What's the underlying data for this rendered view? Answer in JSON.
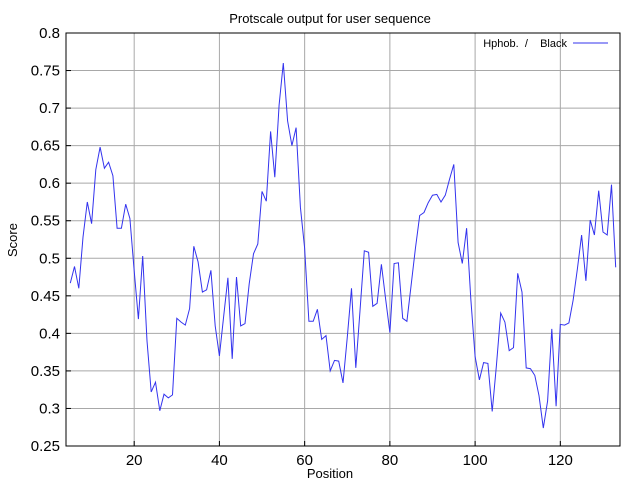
{
  "chart_data": {
    "type": "line",
    "title": "Protscale output for user sequence",
    "xlabel": "Position",
    "ylabel": "Score",
    "xlim": [
      4,
      134
    ],
    "ylim": [
      0.25,
      0.8
    ],
    "x_ticks": [
      20,
      40,
      60,
      80,
      100,
      120
    ],
    "y_ticks": [
      0.25,
      0.3,
      0.35,
      0.4,
      0.45,
      0.5,
      0.55,
      0.6,
      0.65,
      0.7,
      0.75,
      0.8
    ],
    "grid": true,
    "legend_position": "top-right",
    "legend_text": "Hphob.  /    Black",
    "series": [
      {
        "name": "Hphob. / Black",
        "color": "#3333ee",
        "x_start": 5,
        "values": [
          0.467,
          0.489,
          0.46,
          0.528,
          0.575,
          0.546,
          0.618,
          0.648,
          0.62,
          0.628,
          0.61,
          0.54,
          0.54,
          0.572,
          0.553,
          0.483,
          0.419,
          0.503,
          0.39,
          0.322,
          0.335,
          0.297,
          0.319,
          0.314,
          0.318,
          0.42,
          0.415,
          0.411,
          0.433,
          0.516,
          0.495,
          0.455,
          0.458,
          0.484,
          0.41,
          0.37,
          0.423,
          0.474,
          0.366,
          0.475,
          0.41,
          0.413,
          0.466,
          0.506,
          0.519,
          0.589,
          0.576,
          0.669,
          0.608,
          0.704,
          0.76,
          0.683,
          0.65,
          0.674,
          0.568,
          0.514,
          0.416,
          0.416,
          0.432,
          0.392,
          0.397,
          0.35,
          0.364,
          0.363,
          0.334,
          0.395,
          0.46,
          0.354,
          0.43,
          0.51,
          0.508,
          0.436,
          0.44,
          0.492,
          0.446,
          0.401,
          0.493,
          0.494,
          0.42,
          0.416,
          0.465,
          0.513,
          0.557,
          0.561,
          0.574,
          0.584,
          0.585,
          0.575,
          0.584,
          0.605,
          0.625,
          0.521,
          0.493,
          0.54,
          0.446,
          0.369,
          0.338,
          0.361,
          0.36,
          0.296,
          0.357,
          0.427,
          0.415,
          0.377,
          0.381,
          0.48,
          0.455,
          0.354,
          0.353,
          0.344,
          0.317,
          0.274,
          0.31,
          0.406,
          0.303,
          0.412,
          0.411,
          0.414,
          0.444,
          0.486,
          0.531,
          0.47,
          0.551,
          0.531,
          0.59,
          0.535,
          0.531,
          0.598,
          0.488
        ]
      }
    ]
  }
}
